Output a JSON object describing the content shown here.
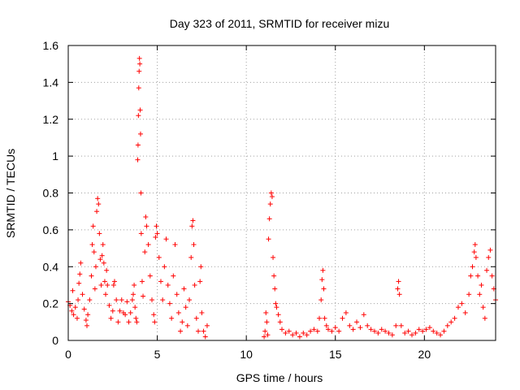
{
  "chart_data": {
    "type": "scatter",
    "title": "Day 323 of 2011, SRMTID for receiver mizu",
    "xlabel": "GPS time / hours",
    "ylabel": "SRMTID / TECUs",
    "xlim": [
      0,
      24
    ],
    "ylim": [
      0,
      1.6
    ],
    "xticks": [
      0,
      5,
      10,
      15,
      20
    ],
    "yticks": [
      0,
      0.2,
      0.4,
      0.6,
      0.8,
      1,
      1.2,
      1.4,
      1.6
    ],
    "xtick_labels": [
      "0",
      "5",
      "10",
      "15",
      "20"
    ],
    "ytick_labels": [
      "0",
      "0.2",
      "0.4",
      "0.6",
      "0.8",
      "1",
      "1.2",
      "1.4",
      "1.6"
    ],
    "grid": true,
    "marker": "+",
    "series_color": "#ff0000",
    "series": [
      {
        "name": "SRMTID",
        "points": [
          [
            0.0,
            0.21
          ],
          [
            0.1,
            0.19
          ],
          [
            0.2,
            0.16
          ],
          [
            0.25,
            0.27
          ],
          [
            0.3,
            0.14
          ],
          [
            0.4,
            0.18
          ],
          [
            0.5,
            0.12
          ],
          [
            0.55,
            0.22
          ],
          [
            0.6,
            0.31
          ],
          [
            0.65,
            0.36
          ],
          [
            0.7,
            0.42
          ],
          [
            0.8,
            0.25
          ],
          [
            0.9,
            0.17
          ],
          [
            1.0,
            0.11
          ],
          [
            1.05,
            0.08
          ],
          [
            1.1,
            0.14
          ],
          [
            1.2,
            0.22
          ],
          [
            1.3,
            0.35
          ],
          [
            1.35,
            0.52
          ],
          [
            1.4,
            0.62
          ],
          [
            1.45,
            0.48
          ],
          [
            1.5,
            0.28
          ],
          [
            1.55,
            0.4
          ],
          [
            1.6,
            0.7
          ],
          [
            1.65,
            0.77
          ],
          [
            1.7,
            0.74
          ],
          [
            1.75,
            0.58
          ],
          [
            1.8,
            0.44
          ],
          [
            1.85,
            0.3
          ],
          [
            1.9,
            0.46
          ],
          [
            1.95,
            0.52
          ],
          [
            2.0,
            0.42
          ],
          [
            2.05,
            0.32
          ],
          [
            2.1,
            0.25
          ],
          [
            2.15,
            0.38
          ],
          [
            2.2,
            0.3
          ],
          [
            2.3,
            0.19
          ],
          [
            2.4,
            0.12
          ],
          [
            2.5,
            0.16
          ],
          [
            2.55,
            0.3
          ],
          [
            2.6,
            0.32
          ],
          [
            2.7,
            0.22
          ],
          [
            2.8,
            0.1
          ],
          [
            2.9,
            0.16
          ],
          [
            3.0,
            0.22
          ],
          [
            3.1,
            0.15
          ],
          [
            3.2,
            0.14
          ],
          [
            3.3,
            0.21
          ],
          [
            3.4,
            0.1
          ],
          [
            3.5,
            0.15
          ],
          [
            3.6,
            0.22
          ],
          [
            3.65,
            0.25
          ],
          [
            3.7,
            0.3
          ],
          [
            3.75,
            0.18
          ],
          [
            3.8,
            0.12
          ],
          [
            3.85,
            0.1
          ],
          [
            3.9,
            0.98
          ],
          [
            3.92,
            1.06
          ],
          [
            3.94,
            1.22
          ],
          [
            3.96,
            1.37
          ],
          [
            3.98,
            1.46
          ],
          [
            4.0,
            1.53
          ],
          [
            4.02,
            1.5
          ],
          [
            4.04,
            1.25
          ],
          [
            4.06,
            1.12
          ],
          [
            4.08,
            0.8
          ],
          [
            4.1,
            0.58
          ],
          [
            4.15,
            0.32
          ],
          [
            4.2,
            0.24
          ],
          [
            4.3,
            0.48
          ],
          [
            4.35,
            0.67
          ],
          [
            4.4,
            0.62
          ],
          [
            4.5,
            0.52
          ],
          [
            4.6,
            0.35
          ],
          [
            4.7,
            0.22
          ],
          [
            4.8,
            0.14
          ],
          [
            4.85,
            0.1
          ],
          [
            4.9,
            0.56
          ],
          [
            4.95,
            0.62
          ],
          [
            5.0,
            0.58
          ],
          [
            5.1,
            0.45
          ],
          [
            5.2,
            0.32
          ],
          [
            5.3,
            0.22
          ],
          [
            5.4,
            0.4
          ],
          [
            5.5,
            0.55
          ],
          [
            5.6,
            0.3
          ],
          [
            5.7,
            0.2
          ],
          [
            5.8,
            0.12
          ],
          [
            5.9,
            0.35
          ],
          [
            6.0,
            0.52
          ],
          [
            6.1,
            0.25
          ],
          [
            6.2,
            0.15
          ],
          [
            6.3,
            0.05
          ],
          [
            6.4,
            0.1
          ],
          [
            6.5,
            0.28
          ],
          [
            6.6,
            0.18
          ],
          [
            6.7,
            0.08
          ],
          [
            6.8,
            0.22
          ],
          [
            6.9,
            0.45
          ],
          [
            6.95,
            0.62
          ],
          [
            7.0,
            0.65
          ],
          [
            7.05,
            0.52
          ],
          [
            7.1,
            0.3
          ],
          [
            7.2,
            0.12
          ],
          [
            7.3,
            0.05
          ],
          [
            7.4,
            0.32
          ],
          [
            7.45,
            0.4
          ],
          [
            7.5,
            0.15
          ],
          [
            7.6,
            0.05
          ],
          [
            7.7,
            0.02
          ],
          [
            7.8,
            0.08
          ],
          [
            11.0,
            0.02
          ],
          [
            11.05,
            0.05
          ],
          [
            11.1,
            0.15
          ],
          [
            11.15,
            0.1
          ],
          [
            11.2,
            0.03
          ],
          [
            11.25,
            0.55
          ],
          [
            11.3,
            0.66
          ],
          [
            11.35,
            0.74
          ],
          [
            11.4,
            0.8
          ],
          [
            11.45,
            0.78
          ],
          [
            11.5,
            0.45
          ],
          [
            11.55,
            0.35
          ],
          [
            11.6,
            0.28
          ],
          [
            11.65,
            0.2
          ],
          [
            11.7,
            0.18
          ],
          [
            11.8,
            0.14
          ],
          [
            11.9,
            0.1
          ],
          [
            12.0,
            0.06
          ],
          [
            12.2,
            0.04
          ],
          [
            12.4,
            0.05
          ],
          [
            12.6,
            0.03
          ],
          [
            12.8,
            0.04
          ],
          [
            13.0,
            0.02
          ],
          [
            13.2,
            0.04
          ],
          [
            13.4,
            0.03
          ],
          [
            13.6,
            0.05
          ],
          [
            13.8,
            0.06
          ],
          [
            14.0,
            0.05
          ],
          [
            14.1,
            0.12
          ],
          [
            14.2,
            0.22
          ],
          [
            14.25,
            0.33
          ],
          [
            14.3,
            0.38
          ],
          [
            14.35,
            0.28
          ],
          [
            14.4,
            0.12
          ],
          [
            14.5,
            0.08
          ],
          [
            14.6,
            0.06
          ],
          [
            14.8,
            0.05
          ],
          [
            15.0,
            0.07
          ],
          [
            15.2,
            0.05
          ],
          [
            15.4,
            0.12
          ],
          [
            15.6,
            0.15
          ],
          [
            15.8,
            0.08
          ],
          [
            16.0,
            0.06
          ],
          [
            16.2,
            0.1
          ],
          [
            16.4,
            0.07
          ],
          [
            16.6,
            0.14
          ],
          [
            16.8,
            0.08
          ],
          [
            17.0,
            0.06
          ],
          [
            17.2,
            0.05
          ],
          [
            17.4,
            0.04
          ],
          [
            17.6,
            0.06
          ],
          [
            17.8,
            0.05
          ],
          [
            18.0,
            0.04
          ],
          [
            18.2,
            0.03
          ],
          [
            18.4,
            0.08
          ],
          [
            18.5,
            0.28
          ],
          [
            18.55,
            0.32
          ],
          [
            18.6,
            0.25
          ],
          [
            18.7,
            0.08
          ],
          [
            18.9,
            0.04
          ],
          [
            19.1,
            0.05
          ],
          [
            19.3,
            0.03
          ],
          [
            19.5,
            0.04
          ],
          [
            19.7,
            0.06
          ],
          [
            19.9,
            0.05
          ],
          [
            20.1,
            0.06
          ],
          [
            20.3,
            0.07
          ],
          [
            20.5,
            0.05
          ],
          [
            20.7,
            0.04
          ],
          [
            20.9,
            0.03
          ],
          [
            21.1,
            0.05
          ],
          [
            21.3,
            0.08
          ],
          [
            21.5,
            0.1
          ],
          [
            21.7,
            0.12
          ],
          [
            21.9,
            0.18
          ],
          [
            22.1,
            0.2
          ],
          [
            22.3,
            0.15
          ],
          [
            22.5,
            0.25
          ],
          [
            22.6,
            0.35
          ],
          [
            22.7,
            0.4
          ],
          [
            22.8,
            0.48
          ],
          [
            22.85,
            0.52
          ],
          [
            22.9,
            0.45
          ],
          [
            23.0,
            0.35
          ],
          [
            23.1,
            0.25
          ],
          [
            23.2,
            0.3
          ],
          [
            23.3,
            0.18
          ],
          [
            23.4,
            0.12
          ],
          [
            23.5,
            0.38
          ],
          [
            23.6,
            0.45
          ],
          [
            23.7,
            0.49
          ],
          [
            23.8,
            0.35
          ],
          [
            23.9,
            0.28
          ],
          [
            24.0,
            0.22
          ]
        ]
      }
    ]
  }
}
